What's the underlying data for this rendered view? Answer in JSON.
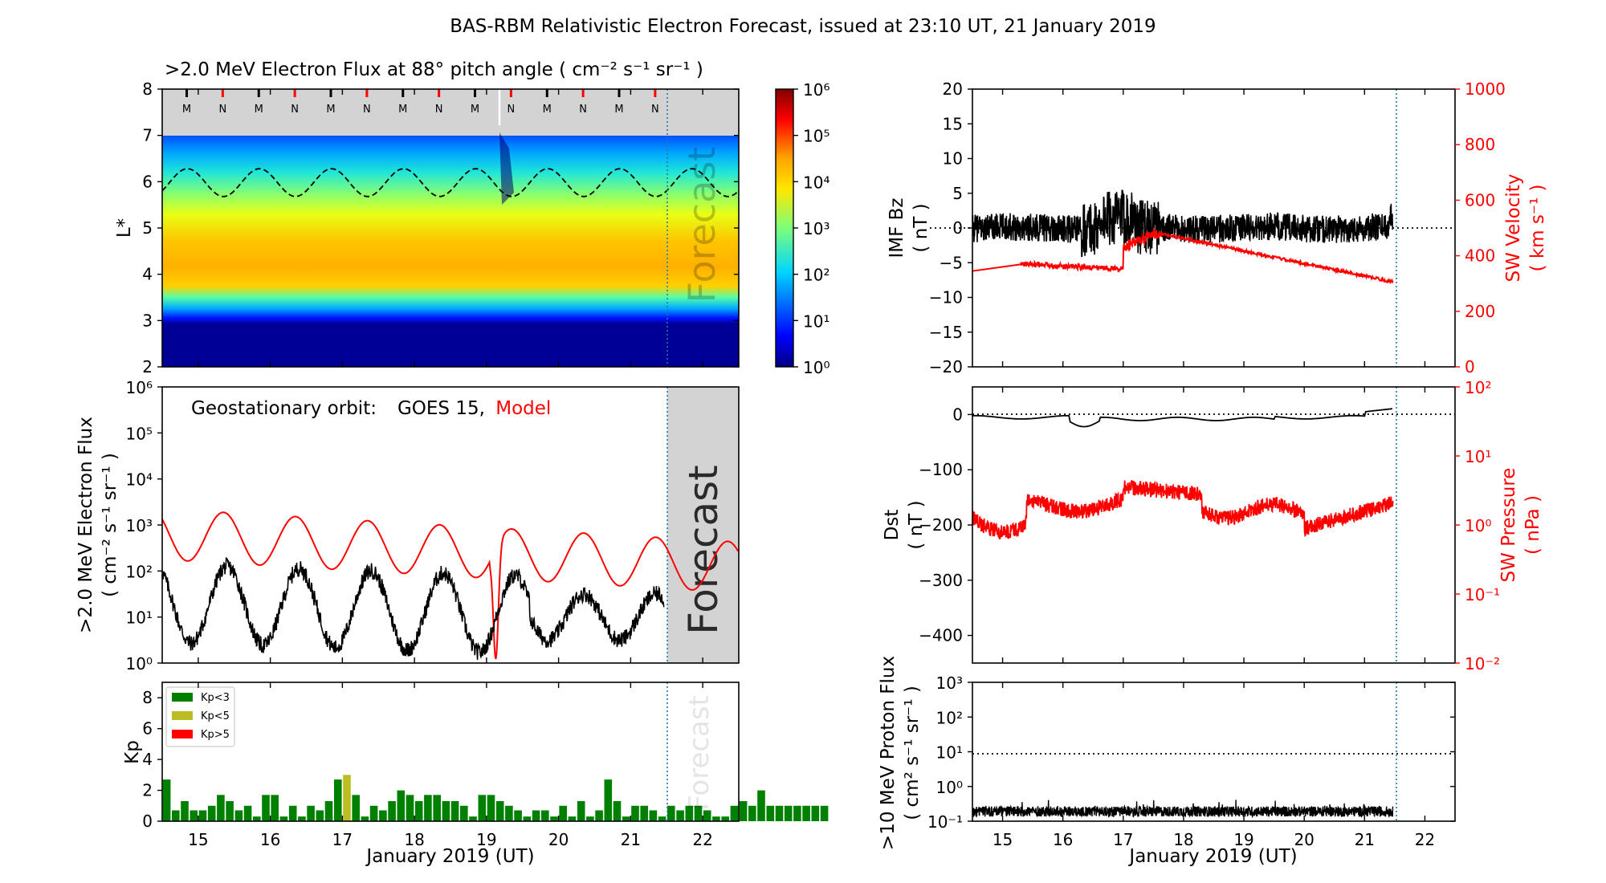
{
  "figure_title": "BAS-RBM Relativistic Electron Forecast, issued at 23:10 UT, 21 January 2019",
  "colors": {
    "black": "#000000",
    "red": "#ff0000",
    "forecast_grey": "#d3d3d3",
    "forecast_line": "#1f77b4",
    "kp_green": "#008000",
    "kp_yellow": "#bcbd22",
    "kp_red": "#ff0000"
  },
  "chart_data": [
    {
      "id": "flux_map",
      "type": "heatmap",
      "title": ">2.0 MeV Electron Flux at 88° pitch angle ( cm⁻² s⁻¹ sr⁻¹ )",
      "ylabel": "L*",
      "xlim": [
        14.5,
        22.5
      ],
      "ylim": [
        2,
        8
      ],
      "yticks": [
        "2",
        "3",
        "4",
        "5",
        "6",
        "7",
        "8"
      ],
      "colorbar": {
        "scale": "log",
        "range": [
          1,
          1000000
        ],
        "ticks": [
          "10⁰",
          "10¹",
          "10²",
          "10³",
          "10⁴",
          "10⁵",
          "10⁶"
        ]
      },
      "midnight_noon_markers": [
        "M",
        "N",
        "M",
        "N",
        "M",
        "N",
        "M",
        "N",
        "M",
        "N",
        "M",
        "N",
        "M",
        "N"
      ],
      "forecast_start_day": 21.47,
      "forecast_label": "Forecast"
    },
    {
      "id": "geo_flux",
      "type": "line",
      "legend_prefix": "Geostationary orbit:",
      "series": [
        {
          "name": "GOES 15",
          "color": "#000000"
        },
        {
          "name": "Model",
          "color": "#ff0000"
        }
      ],
      "ylabel": ">2.0 MeV Electron Flux",
      "yunits": "( cm⁻² s⁻¹ sr⁻¹ )",
      "yscale": "log",
      "ylim": [
        1,
        1000000
      ],
      "yticks": [
        "10⁰",
        "10¹",
        "10²",
        "10³",
        "10⁴",
        "10⁵",
        "10⁶"
      ],
      "xlim": [
        14.5,
        22.5
      ],
      "forecast_label": "Forecast"
    },
    {
      "id": "kp",
      "type": "bar",
      "ylabel": "Kp",
      "ylim": [
        0,
        9
      ],
      "yticks": [
        "0",
        "2",
        "4",
        "6",
        "8"
      ],
      "xlabel": "January 2019 (UT)",
      "xticks": [
        "15",
        "16",
        "17",
        "18",
        "19",
        "20",
        "21",
        "22"
      ],
      "legend": [
        "Kp<3",
        "Kp<5",
        "Kp>5"
      ],
      "start_day": 14.5,
      "bin_hours": 3,
      "values": [
        2.7,
        0.7,
        1.3,
        0.7,
        0.7,
        1,
        1.7,
        1.3,
        0.7,
        1,
        0.3,
        1.7,
        1.7,
        0.3,
        1,
        0.3,
        1,
        0.7,
        1.3,
        2.7,
        3,
        1.7,
        0.3,
        1,
        0.7,
        1.3,
        2,
        1.7,
        1.3,
        1.7,
        1.7,
        1.3,
        1.3,
        1,
        0.3,
        1.7,
        1.7,
        1.3,
        1,
        0.7,
        0.3,
        0.7,
        0.7,
        0.3,
        1,
        0.3,
        1.3,
        0.3,
        0.7,
        2.7,
        1.3,
        0.3,
        1,
        1,
        0.7,
        0.3,
        1,
        0.7,
        1,
        1,
        0.7,
        0.3,
        0.3,
        1,
        1.3,
        1,
        2,
        1,
        1,
        1,
        1,
        1,
        1,
        1
      ],
      "forecast_label": "Forecast"
    },
    {
      "id": "imf_sw",
      "type": "line",
      "ylabel": "IMF Bz",
      "yunits": "( nT )",
      "ylim": [
        -20,
        20
      ],
      "yticks": [
        "−20",
        "−15",
        "−10",
        "−5",
        "0",
        "5",
        "10",
        "15",
        "20"
      ],
      "y2label": "SW Velocity",
      "y2units": "( km s⁻¹ )",
      "y2lim": [
        0,
        1000
      ],
      "y2ticks": [
        "0",
        "200",
        "400",
        "600",
        "800",
        "1000"
      ],
      "xlim": [
        14.5,
        22.5
      ]
    },
    {
      "id": "dst_pressure",
      "type": "line",
      "ylabel": "Dst",
      "yunits": "( nT )",
      "ylim": [
        -450,
        50
      ],
      "yticks": [
        "−400",
        "−300",
        "−200",
        "−100",
        "0"
      ],
      "y2label": "SW Pressure",
      "y2units": "( nPa )",
      "y2scale": "log",
      "y2lim": [
        0.01,
        100
      ],
      "y2ticks": [
        "10⁻²",
        "10⁻¹",
        "10⁰",
        "10¹",
        "10²"
      ],
      "xlim": [
        14.5,
        22.5
      ]
    },
    {
      "id": "proton_flux",
      "type": "line",
      "ylabel": ">10 MeV Proton Flux",
      "yunits": "( cm² s⁻¹ sr⁻¹ )",
      "yscale": "log",
      "ylim": [
        0.1,
        1000
      ],
      "yticks": [
        "10⁻¹",
        "10⁰",
        "10¹",
        "10²",
        "10³"
      ],
      "threshold": 10,
      "xlabel": "January 2019 (UT)",
      "xticks": [
        "15",
        "16",
        "17",
        "18",
        "19",
        "20",
        "21",
        "22"
      ],
      "xlim": [
        14.5,
        22.5
      ]
    }
  ]
}
